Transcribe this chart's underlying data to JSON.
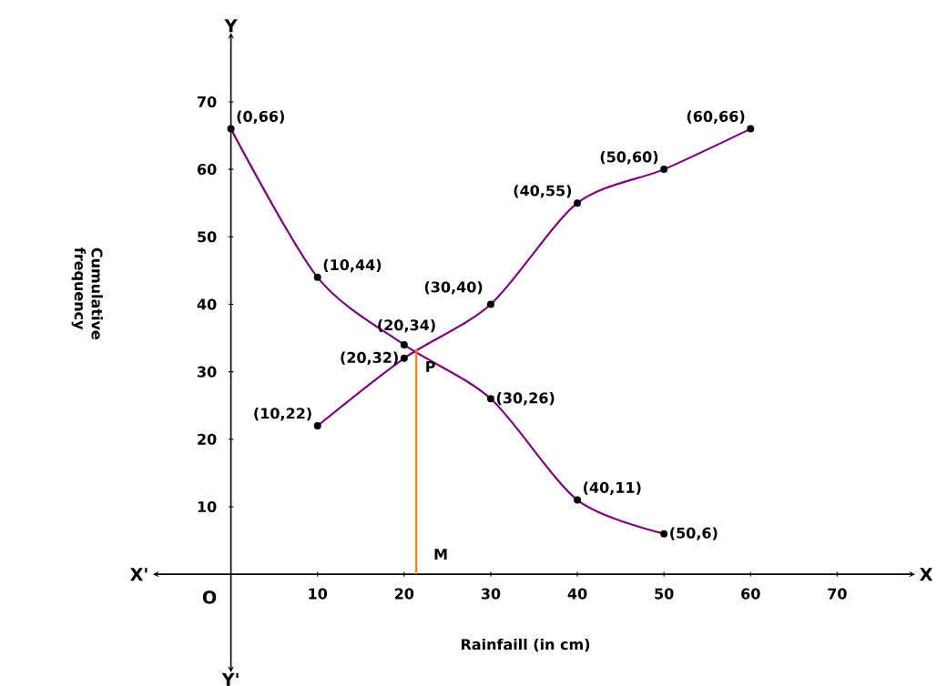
{
  "chart_data": {
    "type": "line",
    "xlabel": "Rainfaill (in cm)",
    "ylabel": "Cumulative frequency",
    "xlim": [
      -9,
      79
    ],
    "ylim": [
      -14,
      79.7
    ],
    "xticks": [
      10,
      20,
      30,
      40,
      50,
      60,
      70
    ],
    "yticks": [
      10,
      20,
      30,
      40,
      50,
      60,
      70
    ],
    "marker": "circle",
    "series": [
      {
        "color": "#800080",
        "x": [
          0,
          10,
          20,
          30,
          40,
          50
        ],
        "values": [
          66,
          44,
          34,
          26,
          11,
          6
        ]
      },
      {
        "color": "#800080",
        "x": [
          10,
          20,
          30,
          40,
          50,
          60
        ],
        "values": [
          22,
          32,
          40,
          55,
          60,
          66
        ]
      },
      {
        "color": "#ff8000",
        "x": [
          21.4,
          21.4
        ],
        "values": [
          0,
          33.4
        ],
        "marker": "none"
      }
    ],
    "annotations": [
      "X",
      "X'",
      "Y",
      "Y'",
      "O",
      {
        "text": "P",
        "x": 21.4,
        "y": 33.4
      },
      {
        "text": "M",
        "x": 21.4,
        "y": 0
      },
      {
        "text": "(0,66)",
        "x": 0,
        "y": 66
      },
      {
        "text": "(10,44)",
        "x": 10,
        "y": 44
      },
      {
        "text": "(20,34)",
        "x": 20,
        "y": 34
      },
      {
        "text": "(30,26)",
        "x": 30,
        "y": 26
      },
      {
        "text": "(40,11)",
        "x": 40,
        "y": 11
      },
      {
        "text": "(50,6)",
        "x": 50,
        "y": 6
      },
      {
        "text": "(10,22)",
        "x": 10,
        "y": 22
      },
      {
        "text": "(20,32)",
        "x": 20,
        "y": 32
      },
      {
        "text": "(30,40)",
        "x": 30,
        "y": 40
      },
      {
        "text": "(40,55)",
        "x": 40,
        "y": 55
      },
      {
        "text": "(50,60)",
        "x": 50,
        "y": 60
      },
      {
        "text": "(60,66)",
        "x": 60,
        "y": 66
      }
    ]
  }
}
